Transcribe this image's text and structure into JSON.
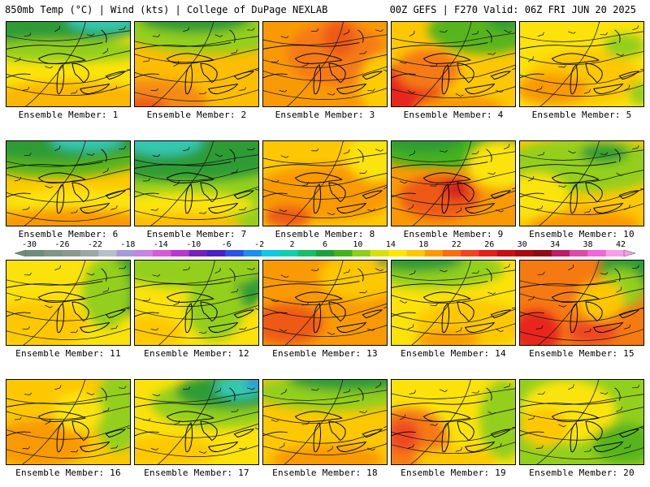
{
  "header": {
    "left": "850mb Temp (°C) | Wind (kts) | College of DuPage NEXLAB",
    "right": "00Z GEFS | F270 Valid: 06Z FRI JUN 20 2025"
  },
  "colorbar": {
    "ticks": [
      "-30",
      "-26",
      "-22",
      "-18",
      "-14",
      "-10",
      "-6",
      "-2",
      "2",
      "6",
      "10",
      "14",
      "18",
      "22",
      "26",
      "30",
      "34",
      "38",
      "42"
    ],
    "colors": [
      "#6f8c80",
      "#7f9587",
      "#889990",
      "#9aa8a3",
      "#b7bfc9",
      "#a49bd8",
      "#c784e0",
      "#d65bd6",
      "#b936d3",
      "#7420b8",
      "#4a20c4",
      "#2f52e0",
      "#1e8ee8",
      "#12c8e0",
      "#10cfae",
      "#18be68",
      "#1fa13a",
      "#45b21c",
      "#90cd1a",
      "#d8df10",
      "#fbe705",
      "#fec800",
      "#fc9a00",
      "#f76e12",
      "#ee4620",
      "#e0201c",
      "#c41016",
      "#a70c14",
      "#8d0a18",
      "#bc1d67",
      "#d84da9",
      "#ee68d8",
      "#f69ee8"
    ]
  },
  "panels": [
    {
      "label": "Ensemble Member: 1",
      "base": "#fbe409",
      "blobs": [
        {
          "c": "#2e9b36",
          "x": 20,
          "y": 0,
          "rx": 160,
          "ry": 30
        },
        {
          "c": "#36c8b0",
          "x": 120,
          "y": -2,
          "rx": 45,
          "ry": 14
        },
        {
          "c": "#93cf1d",
          "x": 70,
          "y": 36,
          "rx": 110,
          "ry": 14
        },
        {
          "c": "#fcb704",
          "x": 75,
          "y": 108,
          "rx": 120,
          "ry": 34
        }
      ]
    },
    {
      "label": "Ensemble Member: 2",
      "base": "#fdbd01",
      "blobs": [
        {
          "c": "#93cf1d",
          "x": 95,
          "y": 10,
          "rx": 110,
          "ry": 30
        },
        {
          "c": "#2e9b36",
          "x": 75,
          "y": -4,
          "rx": 70,
          "ry": 18
        },
        {
          "c": "#f48a12",
          "x": 20,
          "y": 102,
          "rx": 70,
          "ry": 30
        },
        {
          "c": "#ee5a18",
          "x": 10,
          "y": 108,
          "rx": 30,
          "ry": 14
        }
      ]
    },
    {
      "label": "Ensemble Member: 3",
      "base": "#f99a04",
      "blobs": [
        {
          "c": "#f57a12",
          "x": 90,
          "y": 40,
          "rx": 60,
          "ry": 40
        },
        {
          "c": "#fdcc01",
          "x": 150,
          "y": 80,
          "rx": 30,
          "ry": 40
        },
        {
          "c": "#ee5a18",
          "x": 95,
          "y": 20,
          "rx": 20,
          "ry": 24
        }
      ]
    },
    {
      "label": "Ensemble Member: 4",
      "base": "#fdc801",
      "blobs": [
        {
          "c": "#58b41e",
          "x": 115,
          "y": 10,
          "rx": 70,
          "ry": 30
        },
        {
          "c": "#2e9b36",
          "x": 140,
          "y": 0,
          "rx": 20,
          "ry": 10
        },
        {
          "c": "#e8281c",
          "x": 10,
          "y": 100,
          "rx": 55,
          "ry": 45
        },
        {
          "c": "#f57a12",
          "x": 45,
          "y": 60,
          "rx": 40,
          "ry": 26
        },
        {
          "c": "#f99a04",
          "x": 85,
          "y": 110,
          "rx": 55,
          "ry": 18
        }
      ]
    },
    {
      "label": "Ensemble Member: 5",
      "base": "#fbe20a",
      "blobs": [
        {
          "c": "#fdc801",
          "x": 80,
          "y": 70,
          "rx": 70,
          "ry": 35
        },
        {
          "c": "#f99a04",
          "x": 40,
          "y": 85,
          "rx": 45,
          "ry": 20
        },
        {
          "c": "#93cf1d",
          "x": 130,
          "y": 30,
          "rx": 25,
          "ry": 15
        },
        {
          "c": "#93cf1d",
          "x": 150,
          "y": 90,
          "rx": 14,
          "ry": 14
        }
      ]
    },
    {
      "label": "Ensemble Member: 6",
      "base": "#fdc801",
      "blobs": [
        {
          "c": "#58b41e",
          "x": 60,
          "y": 5,
          "rx": 140,
          "ry": 40
        },
        {
          "c": "#2e9b36",
          "x": 60,
          "y": 0,
          "rx": 110,
          "ry": 24
        },
        {
          "c": "#36c8b0",
          "x": 100,
          "y": 0,
          "rx": 45,
          "ry": 12
        },
        {
          "c": "#fbe409",
          "x": 90,
          "y": 75,
          "rx": 100,
          "ry": 15
        },
        {
          "c": "#f99a04",
          "x": 80,
          "y": 104,
          "rx": 100,
          "ry": 20
        }
      ]
    },
    {
      "label": "Ensemble Member: 7",
      "base": "#93cf1d",
      "blobs": [
        {
          "c": "#2e9b36",
          "x": 60,
          "y": 10,
          "rx": 150,
          "ry": 40
        },
        {
          "c": "#36c8b0",
          "x": 35,
          "y": 0,
          "rx": 50,
          "ry": 18
        },
        {
          "c": "#fbe409",
          "x": 60,
          "y": 80,
          "rx": 90,
          "ry": 16
        },
        {
          "c": "#fdbd01",
          "x": 55,
          "y": 104,
          "rx": 80,
          "ry": 14
        }
      ]
    },
    {
      "label": "Ensemble Member: 8",
      "base": "#fdc801",
      "blobs": [
        {
          "c": "#f99a04",
          "x": 75,
          "y": 65,
          "rx": 90,
          "ry": 35
        },
        {
          "c": "#ee5a18",
          "x": 30,
          "y": 95,
          "rx": 30,
          "ry": 14
        },
        {
          "c": "#fbe409",
          "x": 140,
          "y": 20,
          "rx": 35,
          "ry": 30
        }
      ]
    },
    {
      "label": "Ensemble Member: 9",
      "base": "#f99a04",
      "blobs": [
        {
          "c": "#45b21c",
          "x": 70,
          "y": 10,
          "rx": 100,
          "ry": 24
        },
        {
          "c": "#2e9b36",
          "x": 40,
          "y": 0,
          "rx": 50,
          "ry": 14
        },
        {
          "c": "#fbe409",
          "x": 135,
          "y": 30,
          "rx": 40,
          "ry": 30
        },
        {
          "c": "#ee5a18",
          "x": 60,
          "y": 70,
          "rx": 50,
          "ry": 28
        },
        {
          "c": "#d8201c",
          "x": 80,
          "y": 60,
          "rx": 16,
          "ry": 14
        }
      ]
    },
    {
      "label": "Ensemble Member: 10",
      "base": "#fdc801",
      "blobs": [
        {
          "c": "#93cf1d",
          "x": 80,
          "y": 30,
          "rx": 100,
          "ry": 34
        },
        {
          "c": "#2e9b36",
          "x": 105,
          "y": 15,
          "rx": 30,
          "ry": 12
        },
        {
          "c": "#fbe409",
          "x": 20,
          "y": 70,
          "rx": 40,
          "ry": 30
        },
        {
          "c": "#f99a04",
          "x": 80,
          "y": 105,
          "rx": 70,
          "ry": 18
        }
      ]
    },
    {
      "label": "Ensemble Member: 11",
      "base": "#fbe20a",
      "blobs": [
        {
          "c": "#2e9b36",
          "x": 145,
          "y": 30,
          "rx": 30,
          "ry": 40
        },
        {
          "c": "#93cf1d",
          "x": 125,
          "y": 40,
          "rx": 30,
          "ry": 45
        },
        {
          "c": "#fdc801",
          "x": 40,
          "y": 80,
          "rx": 60,
          "ry": 30
        }
      ]
    },
    {
      "label": "Ensemble Member: 12",
      "base": "#fbe20a",
      "blobs": [
        {
          "c": "#2e9b36",
          "x": 125,
          "y": 25,
          "rx": 40,
          "ry": 40
        },
        {
          "c": "#93cf1d",
          "x": 70,
          "y": 10,
          "rx": 90,
          "ry": 25
        },
        {
          "c": "#93cf1d",
          "x": 100,
          "y": 60,
          "rx": 35,
          "ry": 40
        },
        {
          "c": "#fdc801",
          "x": 20,
          "y": 90,
          "rx": 40,
          "ry": 20
        }
      ]
    },
    {
      "label": "Ensemble Member: 13",
      "base": "#f99a04",
      "blobs": [
        {
          "c": "#fdc801",
          "x": 120,
          "y": 20,
          "rx": 50,
          "ry": 30
        },
        {
          "c": "#ee5a18",
          "x": 30,
          "y": 80,
          "rx": 45,
          "ry": 25
        },
        {
          "c": "#2e9b36",
          "x": 150,
          "y": 2,
          "rx": 10,
          "ry": 6
        }
      ]
    },
    {
      "label": "Ensemble Member: 14",
      "base": "#fbe20a",
      "blobs": [
        {
          "c": "#93cf1d",
          "x": 50,
          "y": 10,
          "rx": 90,
          "ry": 25
        },
        {
          "c": "#2e9b36",
          "x": 30,
          "y": 0,
          "rx": 60,
          "ry": 14
        },
        {
          "c": "#fdc801",
          "x": 100,
          "y": 80,
          "rx": 70,
          "ry": 30
        },
        {
          "c": "#f99a04",
          "x": 70,
          "y": 100,
          "rx": 40,
          "ry": 12
        }
      ]
    },
    {
      "label": "Ensemble Member: 15",
      "base": "#f57a12",
      "blobs": [
        {
          "c": "#2e9b36",
          "x": 140,
          "y": 10,
          "rx": 40,
          "ry": 30
        },
        {
          "c": "#93cf1d",
          "x": 125,
          "y": 35,
          "rx": 30,
          "ry": 25
        },
        {
          "c": "#fdc801",
          "x": 100,
          "y": 50,
          "rx": 30,
          "ry": 25
        },
        {
          "c": "#e8281c",
          "x": 20,
          "y": 90,
          "rx": 30,
          "ry": 28
        },
        {
          "c": "#ee4620",
          "x": 90,
          "y": 90,
          "rx": 30,
          "ry": 15
        }
      ]
    },
    {
      "label": "Ensemble Member: 16",
      "base": "#fdc801",
      "blobs": [
        {
          "c": "#93cf1d",
          "x": 140,
          "y": 40,
          "rx": 30,
          "ry": 50
        },
        {
          "c": "#f99a04",
          "x": 40,
          "y": 80,
          "rx": 60,
          "ry": 30
        },
        {
          "c": "#fbe409",
          "x": 90,
          "y": 40,
          "rx": 30,
          "ry": 25
        }
      ]
    },
    {
      "label": "Ensemble Member: 17",
      "base": "#fbe20a",
      "blobs": [
        {
          "c": "#93cf1d",
          "x": 110,
          "y": 30,
          "rx": 90,
          "ry": 30
        },
        {
          "c": "#2e9b36",
          "x": 120,
          "y": 15,
          "rx": 70,
          "ry": 22
        },
        {
          "c": "#36c8b0",
          "x": 130,
          "y": 10,
          "rx": 30,
          "ry": 14
        },
        {
          "c": "#1e8ee8",
          "x": 150,
          "y": 2,
          "rx": 12,
          "ry": 8
        },
        {
          "c": "#fdc801",
          "x": 40,
          "y": 90,
          "rx": 60,
          "ry": 20
        }
      ]
    },
    {
      "label": "Ensemble Member: 18",
      "base": "#fdc801",
      "blobs": [
        {
          "c": "#93cf1d",
          "x": 90,
          "y": 15,
          "rx": 100,
          "ry": 24
        },
        {
          "c": "#2e9b36",
          "x": 110,
          "y": 0,
          "rx": 80,
          "ry": 14
        },
        {
          "c": "#f99a04",
          "x": 80,
          "y": 100,
          "rx": 70,
          "ry": 18
        }
      ]
    },
    {
      "label": "Ensemble Member: 19",
      "base": "#fbe20a",
      "blobs": [
        {
          "c": "#f57a12",
          "x": 20,
          "y": 75,
          "rx": 50,
          "ry": 40
        },
        {
          "c": "#ee4620",
          "x": 15,
          "y": 70,
          "rx": 20,
          "ry": 20
        },
        {
          "c": "#93cf1d",
          "x": 140,
          "y": 50,
          "rx": 30,
          "ry": 50
        },
        {
          "c": "#fdc801",
          "x": 80,
          "y": 100,
          "rx": 50,
          "ry": 15
        }
      ]
    },
    {
      "label": "Ensemble Member: 20",
      "base": "#93cf1d",
      "blobs": [
        {
          "c": "#fbe409",
          "x": 60,
          "y": 40,
          "rx": 60,
          "ry": 40
        },
        {
          "c": "#fdc801",
          "x": 30,
          "y": 60,
          "rx": 30,
          "ry": 25
        },
        {
          "c": "#58b41e",
          "x": 130,
          "y": 80,
          "rx": 40,
          "ry": 25
        }
      ]
    }
  ]
}
